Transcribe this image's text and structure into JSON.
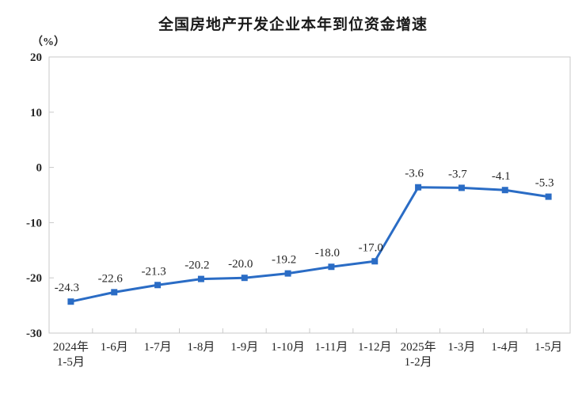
{
  "header": {
    "title": "全国房地产开发企业本年到位资金增速"
  },
  "axis": {
    "unit_label": "（%）"
  },
  "chart_data": {
    "type": "line",
    "title": "全国房地产开发企业本年到位资金增速",
    "xlabel": "",
    "ylabel": "（%）",
    "categories": [
      "2024年\n1-5月",
      "1-6月",
      "1-7月",
      "1-8月",
      "1-9月",
      "1-10月",
      "1-11月",
      "1-12月",
      "2025年\n1-2月",
      "1-3月",
      "1-4月",
      "1-5月"
    ],
    "values": [
      -24.3,
      -22.6,
      -21.3,
      -20.2,
      -20.0,
      -19.2,
      -18.0,
      -17.0,
      -3.6,
      -3.7,
      -4.1,
      -5.3
    ],
    "point_labels": [
      "-24.3",
      "-22.6",
      "-21.3",
      "-20.2",
      "-20.0",
      "-19.2",
      "-18.0",
      "-17.0",
      "-3.6",
      "-3.7",
      "-4.1",
      "-5.3"
    ],
    "ylim": [
      -30,
      20
    ],
    "yticks": [
      20,
      10,
      0,
      -10,
      -20,
      -30
    ],
    "grid": false,
    "legend": "none",
    "marker": "square",
    "colors": {
      "line": "#2a6cc5",
      "marker": "#2a6cc5",
      "plot_border": "#c9c9c9",
      "tick": "#c9c9c9",
      "text": "#262626",
      "title_text": "#1a1a1a",
      "background": "#ffffff"
    }
  }
}
